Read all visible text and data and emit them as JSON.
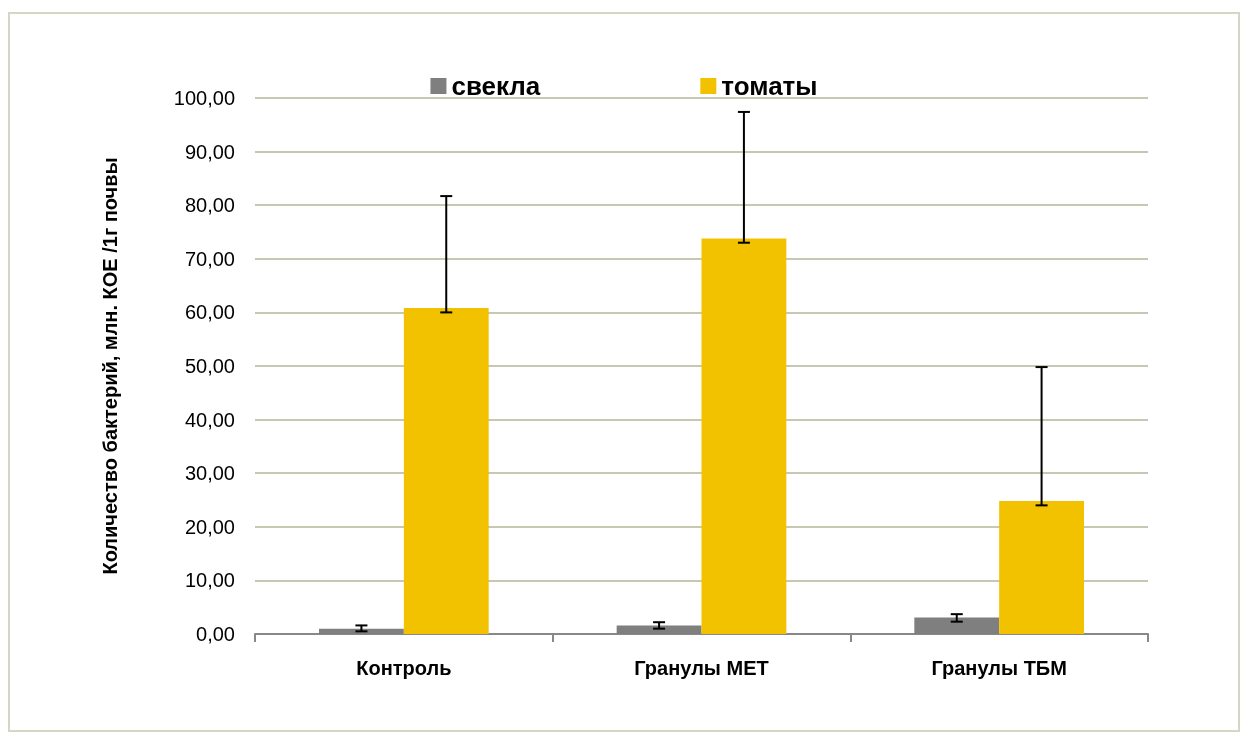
{
  "chart_data": {
    "type": "bar",
    "ylabel": "Количество бактерий, млн. КОЕ /1г почвы",
    "categories": [
      "Контроль",
      "Гранулы МЕТ",
      "Гранулы ТБМ"
    ],
    "series": [
      {
        "name": "свекла",
        "color": "#7f7f7f",
        "values": [
          1.0,
          1.6,
          3.1
        ],
        "errors": [
          [
            0.5,
            1.6
          ],
          [
            1.0,
            2.2
          ],
          [
            2.3,
            3.7
          ]
        ]
      },
      {
        "name": "томаты",
        "color": "#f2c200",
        "values": [
          60.8,
          73.8,
          24.8
        ],
        "errors": [
          [
            60,
            81.7
          ],
          [
            73,
            97.4
          ],
          [
            24,
            49.8
          ]
        ]
      }
    ],
    "ylim": [
      0,
      100
    ],
    "yticks": [
      {
        "value": 0,
        "label": "0,00"
      },
      {
        "value": 10,
        "label": "10,00"
      },
      {
        "value": 20,
        "label": "20,00"
      },
      {
        "value": 30,
        "label": "30,00"
      },
      {
        "value": 40,
        "label": "40,00"
      },
      {
        "value": 50,
        "label": "50,00"
      },
      {
        "value": 60,
        "label": "60,00"
      },
      {
        "value": 70,
        "label": "70,00"
      },
      {
        "value": 80,
        "label": "80,00"
      },
      {
        "value": 90,
        "label": "90,00"
      },
      {
        "value": 100,
        "label": "100,00"
      }
    ],
    "grid": "y",
    "legend": "top"
  }
}
